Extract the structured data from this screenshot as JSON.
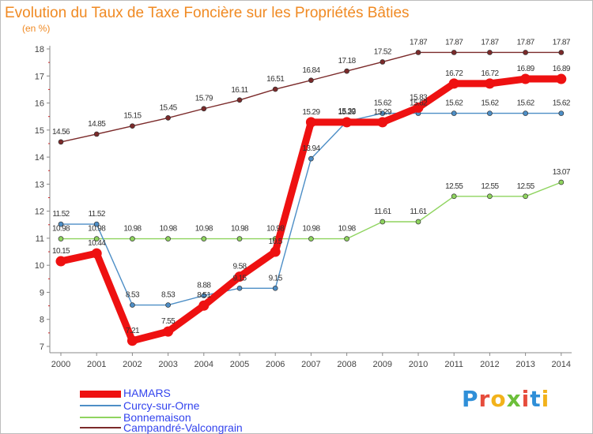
{
  "title": "Evolution du Taux de Taxe Foncière sur les Propriétés Bâties",
  "unit_label": "(en %)",
  "brand": {
    "text": "Proxiti",
    "letter_colors": [
      "#2f8fd8",
      "#e64c3c",
      "#f2b21b",
      "#6cbf3a",
      "#e64c3c",
      "#2f8fd8",
      "#f2b21b"
    ]
  },
  "chart_data": {
    "type": "line",
    "x": [
      2000,
      2001,
      2002,
      2003,
      2004,
      2005,
      2006,
      2007,
      2008,
      2009,
      2010,
      2011,
      2012,
      2013,
      2014
    ],
    "ylim": [
      7,
      18
    ],
    "yticks": [
      7,
      8,
      9,
      10,
      11,
      12,
      13,
      14,
      15,
      16,
      17,
      18
    ],
    "grid": false,
    "legend_position": "bottom-left",
    "series": [
      {
        "name": "HAMARS",
        "color": "#ee1111",
        "values": [
          10.15,
          10.44,
          7.21,
          7.55,
          8.51,
          9.58,
          10.5,
          15.29,
          15.29,
          15.29,
          15.83,
          16.72,
          16.72,
          16.89,
          16.89
        ],
        "labels": [
          "10.15",
          "10.44",
          "7.21",
          "7.55",
          "8.51",
          "9.58",
          "10.5",
          "15.29",
          "15.29",
          "15.29",
          "15.83",
          "16.72",
          "16.72",
          "16.89",
          "16.89"
        ]
      },
      {
        "name": "Curcy-sur-Orne",
        "color": "#4d8ec6",
        "values": [
          11.52,
          11.52,
          8.53,
          8.53,
          8.88,
          9.15,
          9.15,
          13.94,
          15.32,
          15.62,
          15.62,
          15.62,
          15.62,
          15.62,
          15.62
        ],
        "labels": [
          "11.52",
          "11.52",
          "8.53",
          "8.53",
          "8.88",
          "9.15",
          "9.15",
          "13.94",
          "15.32",
          "15.62",
          "15.62",
          "15.62",
          "15.62",
          "15.62",
          "15.62"
        ]
      },
      {
        "name": "Bonnemaison",
        "color": "#8fd45f",
        "values": [
          10.98,
          10.98,
          10.98,
          10.98,
          10.98,
          10.98,
          10.98,
          10.98,
          10.98,
          11.61,
          11.61,
          12.55,
          12.55,
          12.55,
          13.07
        ],
        "labels": [
          "10.98",
          "10.98",
          "10.98",
          "10.98",
          "10.98",
          "10.98",
          "10.98",
          "10.98",
          "10.98",
          "11.61",
          "11.61",
          "12.55",
          "12.55",
          "12.55",
          "13.07"
        ]
      },
      {
        "name": "Campandré-Valcongrain",
        "color": "#7b2a2a",
        "values": [
          14.56,
          14.85,
          15.15,
          15.45,
          15.79,
          16.11,
          16.51,
          16.84,
          17.18,
          17.52,
          17.87,
          17.87,
          17.87,
          17.87,
          17.87
        ],
        "labels": [
          "14.56",
          "14.85",
          "15.15",
          "15.45",
          "15.79",
          "16.11",
          "16.51",
          "16.84",
          "17.18",
          "17.52",
          "17.87",
          "17.87",
          "17.87",
          "17.87",
          "17.87"
        ]
      }
    ]
  }
}
